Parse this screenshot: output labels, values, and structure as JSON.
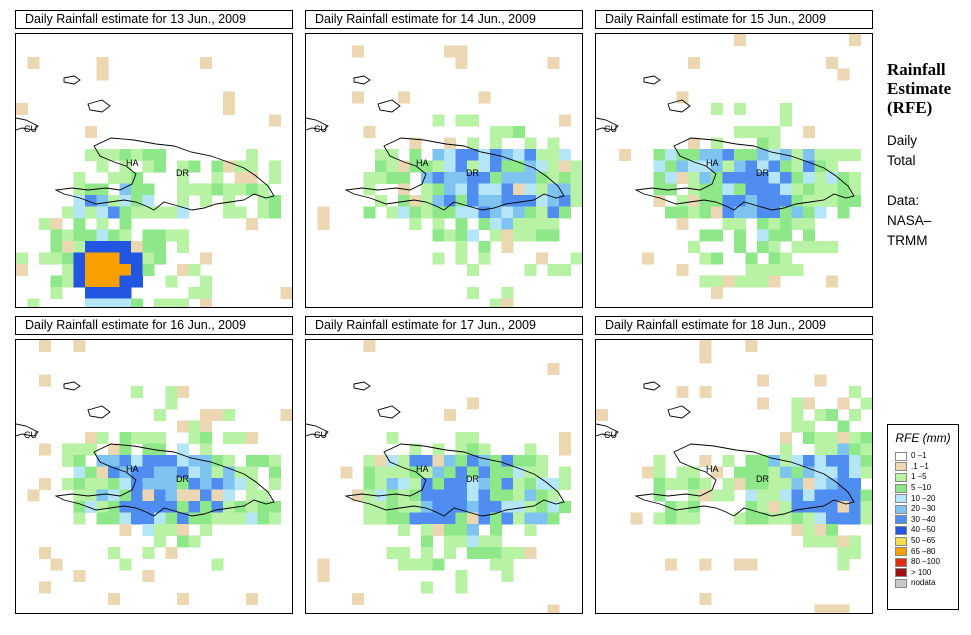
{
  "panels": [
    {
      "title": "Daily Rainfall estimate for  13 Jun., 2009"
    },
    {
      "title": "Daily Rainfall estimate for  14 Jun., 2009"
    },
    {
      "title": "Daily Rainfall estimate for  15 Jun., 2009"
    },
    {
      "title": "Daily Rainfall estimate for  16 Jun., 2009"
    },
    {
      "title": "Daily Rainfall estimate for  17 Jun., 2009"
    },
    {
      "title": "Daily Rainfall estimate for  18 Jun., 2009"
    }
  ],
  "map_labels": {
    "cuba": "CU",
    "haiti": "HA",
    "dominican_republic": "DR"
  },
  "sidebar": {
    "title_line1": "Rainfall",
    "title_line2": "Estimate",
    "title_line3": "(RFE)",
    "period_line1": "Daily",
    "period_line2": "Total",
    "source_line1": "Data:",
    "source_line2": "NASA–",
    "source_line3": "TRMM"
  },
  "legend": {
    "title": "RFE (mm)",
    "items": [
      {
        "label": "0 –1",
        "color": "#ffffff"
      },
      {
        "label": ".1 –1",
        "color": "#ecd7b3"
      },
      {
        "label": "1 –5",
        "color": "#b8f2a4"
      },
      {
        "label": "5 –10",
        "color": "#8ee88a"
      },
      {
        "label": "10 –20",
        "color": "#b4e6f7"
      },
      {
        "label": "20 –30",
        "color": "#7fc4f0"
      },
      {
        "label": "30 –40",
        "color": "#4f8ef0"
      },
      {
        "label": "40 –50",
        "color": "#2255e0"
      },
      {
        "label": "50 –65",
        "color": "#f5dc50"
      },
      {
        "label": "65 –80",
        "color": "#f7a000"
      },
      {
        "label": "80 –100",
        "color": "#e03010"
      },
      {
        "label": "> 100",
        "color": "#a01010"
      },
      {
        "label": "nodata",
        "color": "#c8c8c8"
      }
    ]
  }
}
